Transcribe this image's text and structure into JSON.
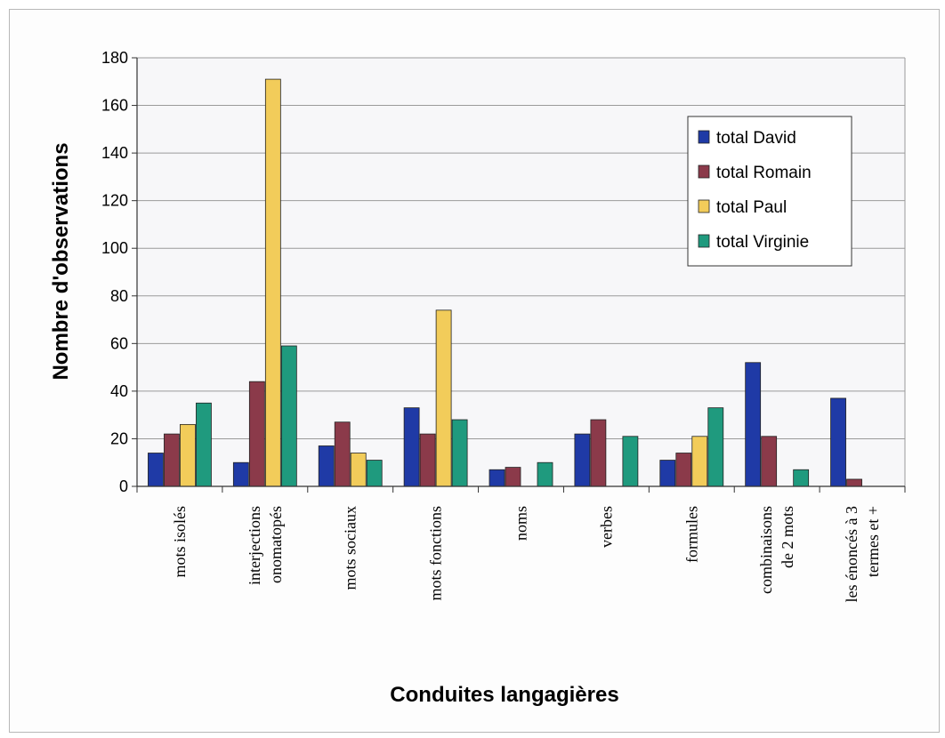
{
  "chart_data": {
    "type": "bar",
    "xlabel": "Conduites langagières",
    "ylabel": "Nombre d'observations",
    "ylim": [
      0,
      180
    ],
    "yticks": [
      0,
      20,
      40,
      60,
      80,
      100,
      120,
      140,
      160,
      180
    ],
    "grid": true,
    "legend_position": "top-right",
    "categories": [
      [
        "mots isolés"
      ],
      [
        "interjections",
        "onomatopés"
      ],
      [
        "mots sociaux"
      ],
      [
        "mots fonctions"
      ],
      [
        "noms"
      ],
      [
        "verbes"
      ],
      [
        "formules"
      ],
      [
        "combinaisons",
        "de 2 mots"
      ],
      [
        "les énoncés à 3",
        "termes et +"
      ]
    ],
    "series": [
      {
        "name": "total David",
        "color": "#1f3aa6",
        "values": [
          14,
          10,
          17,
          33,
          7,
          22,
          11,
          52,
          37
        ]
      },
      {
        "name": "total Romain",
        "color": "#8b3a4a",
        "values": [
          22,
          44,
          27,
          22,
          8,
          28,
          14,
          21,
          3
        ]
      },
      {
        "name": "total Paul",
        "color": "#f2cc5a",
        "values": [
          26,
          171,
          14,
          74,
          0,
          0,
          21,
          0,
          0
        ]
      },
      {
        "name": "total Virginie",
        "color": "#1f9a7e",
        "values": [
          35,
          59,
          11,
          28,
          10,
          21,
          33,
          7,
          0
        ]
      }
    ]
  }
}
